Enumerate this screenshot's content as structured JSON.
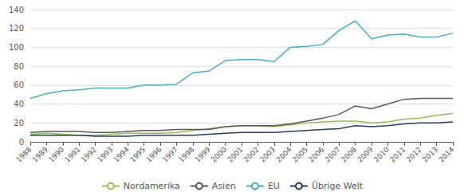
{
  "chart_data": {
    "type": "line",
    "x": [
      1988,
      1989,
      1990,
      1991,
      1992,
      1993,
      1994,
      1995,
      1996,
      1997,
      1998,
      1999,
      2000,
      2001,
      2002,
      2003,
      2004,
      2005,
      2006,
      2007,
      2008,
      2009,
      2010,
      2011,
      2012,
      2013,
      2014
    ],
    "series": [
      {
        "name": "Nordamerika",
        "color": "#9BBB59",
        "values": [
          8,
          9,
          8,
          7,
          7,
          8,
          9,
          9,
          9,
          10,
          12,
          14,
          16,
          17,
          17,
          16,
          18,
          20,
          21,
          22,
          22,
          20,
          21,
          24,
          25,
          28,
          30
        ]
      },
      {
        "name": "Asien",
        "color": "#595959",
        "values": [
          10,
          11,
          11,
          11,
          10,
          10,
          11,
          12,
          12,
          13,
          13,
          13,
          16,
          17,
          17,
          17,
          19,
          22,
          25,
          29,
          38,
          35,
          40,
          45,
          46,
          46,
          46
        ]
      },
      {
        "name": "EU",
        "color": "#4BACC6",
        "values": [
          46,
          51,
          54,
          55,
          57,
          57,
          57,
          60,
          60,
          61,
          73,
          75,
          86,
          87,
          87,
          85,
          100,
          101,
          103,
          118,
          128,
          109,
          113,
          114,
          111,
          111,
          115
        ]
      },
      {
        "name": "Übrige Welt",
        "color": "#243F60",
        "values": [
          7,
          7,
          7,
          7,
          6,
          6,
          6,
          7,
          7,
          7,
          7,
          8,
          9,
          10,
          10,
          10,
          11,
          12,
          13,
          14,
          17,
          16,
          17,
          19,
          20,
          20,
          21
        ]
      }
    ],
    "xlim": [
      1988,
      2014
    ],
    "xticks": [
      1988,
      1989,
      1990,
      1991,
      1992,
      1993,
      1994,
      1995,
      1996,
      1997,
      1998,
      1999,
      2000,
      2001,
      2002,
      2003,
      2004,
      2005,
      2006,
      2007,
      2008,
      2009,
      2010,
      2011,
      2012,
      2013,
      2014
    ],
    "ylim": [
      0,
      140
    ],
    "yticks": [
      0,
      20,
      40,
      60,
      80,
      100,
      120,
      140
    ],
    "grid": true,
    "legend": "bottom"
  }
}
